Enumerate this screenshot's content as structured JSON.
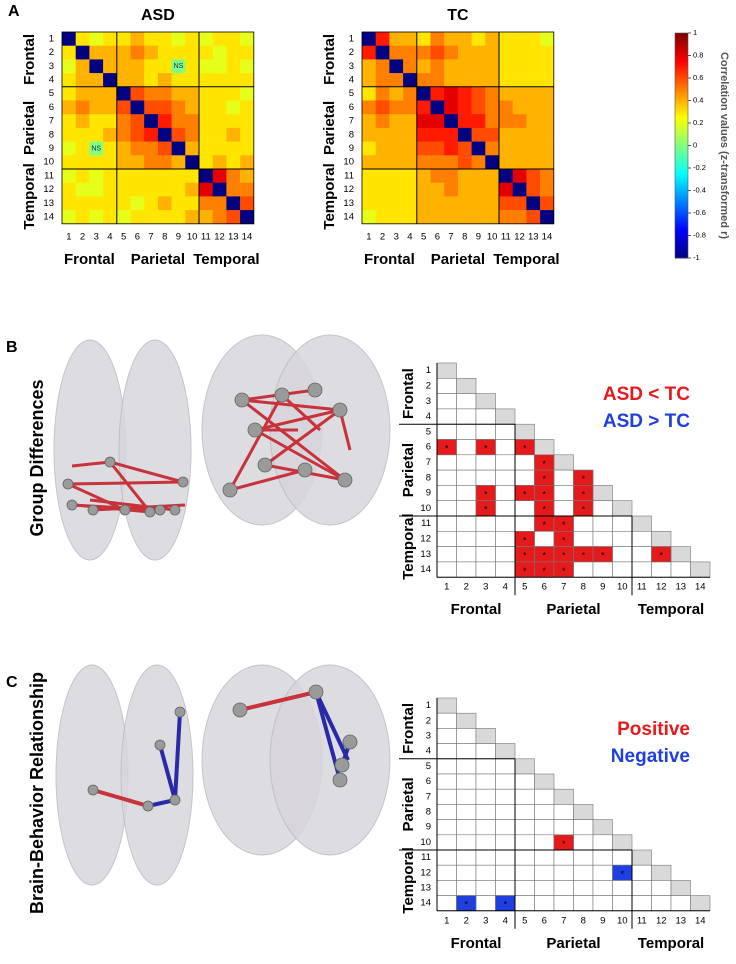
{
  "chart_data": [
    {
      "type": "heatmap",
      "panel_label": "A",
      "title": "ASD",
      "row_labels": [
        1,
        2,
        3,
        4,
        5,
        6,
        7,
        8,
        9,
        10,
        11,
        12,
        13,
        14
      ],
      "col_labels": [
        1,
        2,
        3,
        4,
        5,
        6,
        7,
        8,
        9,
        10,
        11,
        12,
        13,
        14
      ],
      "groups": [
        "Frontal",
        "Parietal",
        "Temporal"
      ],
      "annotation": "NS",
      "annotation_cells": [
        [
          3,
          9
        ],
        [
          9,
          3
        ]
      ],
      "values": [
        [
          -1,
          0.3,
          0.2,
          0.3,
          0.3,
          0.4,
          0.3,
          0.3,
          0.2,
          0.3,
          0.2,
          0.3,
          0.3,
          0.2
        ],
        [
          0.3,
          -1,
          0.4,
          0.4,
          0.4,
          0.5,
          0.4,
          0.3,
          0.3,
          0.3,
          0.3,
          0.2,
          0.3,
          0.3
        ],
        [
          0.2,
          0.4,
          -1,
          0.4,
          0.4,
          0.4,
          0.3,
          0.3,
          0.0,
          0.3,
          0.2,
          0.2,
          0.3,
          0.2
        ],
        [
          0.3,
          0.4,
          0.4,
          -1,
          0.4,
          0.4,
          0.3,
          0.4,
          0.3,
          0.3,
          0.3,
          0.3,
          0.3,
          0.3
        ],
        [
          0.3,
          0.4,
          0.4,
          0.4,
          -1,
          0.6,
          0.5,
          0.5,
          0.4,
          0.4,
          0.3,
          0.3,
          0.3,
          0.2
        ],
        [
          0.4,
          0.5,
          0.4,
          0.4,
          0.6,
          -1,
          0.6,
          0.6,
          0.5,
          0.4,
          0.3,
          0.3,
          0.2,
          0.3
        ],
        [
          0.3,
          0.4,
          0.3,
          0.3,
          0.5,
          0.6,
          -1,
          0.7,
          0.5,
          0.5,
          0.3,
          0.3,
          0.3,
          0.3
        ],
        [
          0.3,
          0.3,
          0.3,
          0.4,
          0.5,
          0.6,
          0.7,
          -1,
          0.6,
          0.5,
          0.3,
          0.3,
          0.4,
          0.3
        ],
        [
          0.2,
          0.3,
          0.0,
          0.3,
          0.4,
          0.5,
          0.5,
          0.6,
          -1,
          0.4,
          0.3,
          0.3,
          0.3,
          0.3
        ],
        [
          0.3,
          0.3,
          0.3,
          0.3,
          0.4,
          0.4,
          0.5,
          0.5,
          0.4,
          -1,
          0.3,
          0.4,
          0.3,
          0.4
        ],
        [
          0.2,
          0.3,
          0.2,
          0.3,
          0.3,
          0.3,
          0.3,
          0.3,
          0.3,
          0.3,
          -1,
          0.8,
          0.5,
          0.4
        ],
        [
          0.3,
          0.2,
          0.2,
          0.3,
          0.3,
          0.3,
          0.3,
          0.3,
          0.3,
          0.4,
          0.8,
          -1,
          0.5,
          0.5
        ],
        [
          0.3,
          0.3,
          0.3,
          0.3,
          0.3,
          0.2,
          0.3,
          0.4,
          0.3,
          0.3,
          0.5,
          0.5,
          -1,
          0.6
        ],
        [
          0.2,
          0.3,
          0.2,
          0.3,
          0.2,
          0.3,
          0.3,
          0.3,
          0.3,
          0.4,
          0.4,
          0.5,
          0.6,
          -1
        ]
      ]
    },
    {
      "type": "heatmap",
      "title": "TC",
      "row_labels": [
        1,
        2,
        3,
        4,
        5,
        6,
        7,
        8,
        9,
        10,
        11,
        12,
        13,
        14
      ],
      "col_labels": [
        1,
        2,
        3,
        4,
        5,
        6,
        7,
        8,
        9,
        10,
        11,
        12,
        13,
        14
      ],
      "groups": [
        "Frontal",
        "Parietal",
        "Temporal"
      ],
      "values": [
        [
          -1,
          0.7,
          0.4,
          0.4,
          0.3,
          0.5,
          0.4,
          0.4,
          0.3,
          0.4,
          0.3,
          0.3,
          0.3,
          0.2
        ],
        [
          0.7,
          -1,
          0.5,
          0.5,
          0.5,
          0.6,
          0.5,
          0.4,
          0.4,
          0.4,
          0.3,
          0.3,
          0.3,
          0.3
        ],
        [
          0.4,
          0.5,
          -1,
          0.5,
          0.4,
          0.5,
          0.4,
          0.4,
          0.4,
          0.4,
          0.3,
          0.3,
          0.3,
          0.3
        ],
        [
          0.4,
          0.5,
          0.5,
          -1,
          0.5,
          0.5,
          0.4,
          0.4,
          0.4,
          0.4,
          0.3,
          0.3,
          0.3,
          0.3
        ],
        [
          0.3,
          0.5,
          0.4,
          0.5,
          -1,
          0.7,
          0.8,
          0.7,
          0.6,
          0.5,
          0.4,
          0.4,
          0.4,
          0.4
        ],
        [
          0.5,
          0.6,
          0.5,
          0.5,
          0.7,
          -1,
          0.8,
          0.7,
          0.6,
          0.5,
          0.5,
          0.4,
          0.4,
          0.4
        ],
        [
          0.4,
          0.5,
          0.4,
          0.4,
          0.8,
          0.8,
          -1,
          0.7,
          0.7,
          0.5,
          0.5,
          0.5,
          0.4,
          0.4
        ],
        [
          0.4,
          0.4,
          0.4,
          0.4,
          0.7,
          0.7,
          0.7,
          -1,
          0.6,
          0.6,
          0.4,
          0.4,
          0.4,
          0.4
        ],
        [
          0.3,
          0.4,
          0.4,
          0.4,
          0.6,
          0.6,
          0.7,
          0.6,
          -1,
          0.5,
          0.4,
          0.4,
          0.4,
          0.4
        ],
        [
          0.4,
          0.4,
          0.4,
          0.4,
          0.5,
          0.5,
          0.5,
          0.6,
          0.5,
          -1,
          0.4,
          0.4,
          0.4,
          0.4
        ],
        [
          0.3,
          0.3,
          0.3,
          0.3,
          0.4,
          0.5,
          0.5,
          0.4,
          0.4,
          0.4,
          -1,
          0.8,
          0.6,
          0.5
        ],
        [
          0.3,
          0.3,
          0.3,
          0.3,
          0.4,
          0.4,
          0.5,
          0.4,
          0.4,
          0.4,
          0.8,
          -1,
          0.6,
          0.5
        ],
        [
          0.3,
          0.3,
          0.3,
          0.3,
          0.4,
          0.4,
          0.4,
          0.4,
          0.4,
          0.4,
          0.6,
          0.6,
          -1,
          0.6
        ],
        [
          0.2,
          0.3,
          0.3,
          0.3,
          0.4,
          0.4,
          0.4,
          0.4,
          0.4,
          0.4,
          0.5,
          0.5,
          0.6,
          -1
        ]
      ]
    },
    {
      "type": "colorbar",
      "label": "Correlation values (z-transformed r)",
      "ylim": [
        -1,
        1
      ],
      "yticks": [
        -1,
        -0.8,
        -0.6,
        -0.4,
        -0.2,
        0,
        0.2,
        0.4,
        0.6,
        0.8,
        1
      ]
    },
    {
      "type": "triangle",
      "panel_label": "B",
      "title": "Group Differences",
      "row_labels": [
        1,
        2,
        3,
        4,
        5,
        6,
        7,
        8,
        9,
        10,
        11,
        12,
        13,
        14
      ],
      "col_labels": [
        1,
        2,
        3,
        4,
        5,
        6,
        7,
        8,
        9,
        10,
        11,
        12,
        13,
        14
      ],
      "groups": [
        "Frontal",
        "Parietal",
        "Temporal"
      ],
      "marker": "*",
      "series": [
        {
          "name": "ASD < TC",
          "color": "#e41a1c",
          "cells": [
            [
              6,
              1
            ],
            [
              6,
              3
            ],
            [
              6,
              5
            ],
            [
              7,
              6
            ],
            [
              8,
              6
            ],
            [
              8,
              8
            ],
            [
              9,
              3
            ],
            [
              9,
              5
            ],
            [
              9,
              6
            ],
            [
              9,
              8
            ],
            [
              10,
              3
            ],
            [
              10,
              6
            ],
            [
              10,
              8
            ],
            [
              11,
              6
            ],
            [
              11,
              7
            ],
            [
              12,
              5
            ],
            [
              12,
              7
            ],
            [
              13,
              5
            ],
            [
              13,
              6
            ],
            [
              13,
              7
            ],
            [
              13,
              8
            ],
            [
              13,
              9
            ],
            [
              13,
              12
            ],
            [
              14,
              5
            ],
            [
              14,
              6
            ],
            [
              14,
              7
            ]
          ]
        },
        {
          "name": "ASD > TC",
          "color": "#1f3fe0",
          "cells": []
        }
      ]
    },
    {
      "type": "triangle",
      "panel_label": "C",
      "title": "Brain-Behavior Relationship",
      "row_labels": [
        1,
        2,
        3,
        4,
        5,
        6,
        7,
        8,
        9,
        10,
        11,
        12,
        13,
        14
      ],
      "col_labels": [
        1,
        2,
        3,
        4,
        5,
        6,
        7,
        8,
        9,
        10,
        11,
        12,
        13,
        14
      ],
      "groups": [
        "Frontal",
        "Parietal",
        "Temporal"
      ],
      "marker": "*",
      "series": [
        {
          "name": "Positive",
          "color": "#e41a1c",
          "cells": [
            [
              10,
              7
            ]
          ]
        },
        {
          "name": "Negative",
          "color": "#1f3fe0",
          "cells": [
            [
              12,
              10
            ],
            [
              14,
              2
            ],
            [
              14,
              4
            ]
          ]
        }
      ]
    }
  ]
}
